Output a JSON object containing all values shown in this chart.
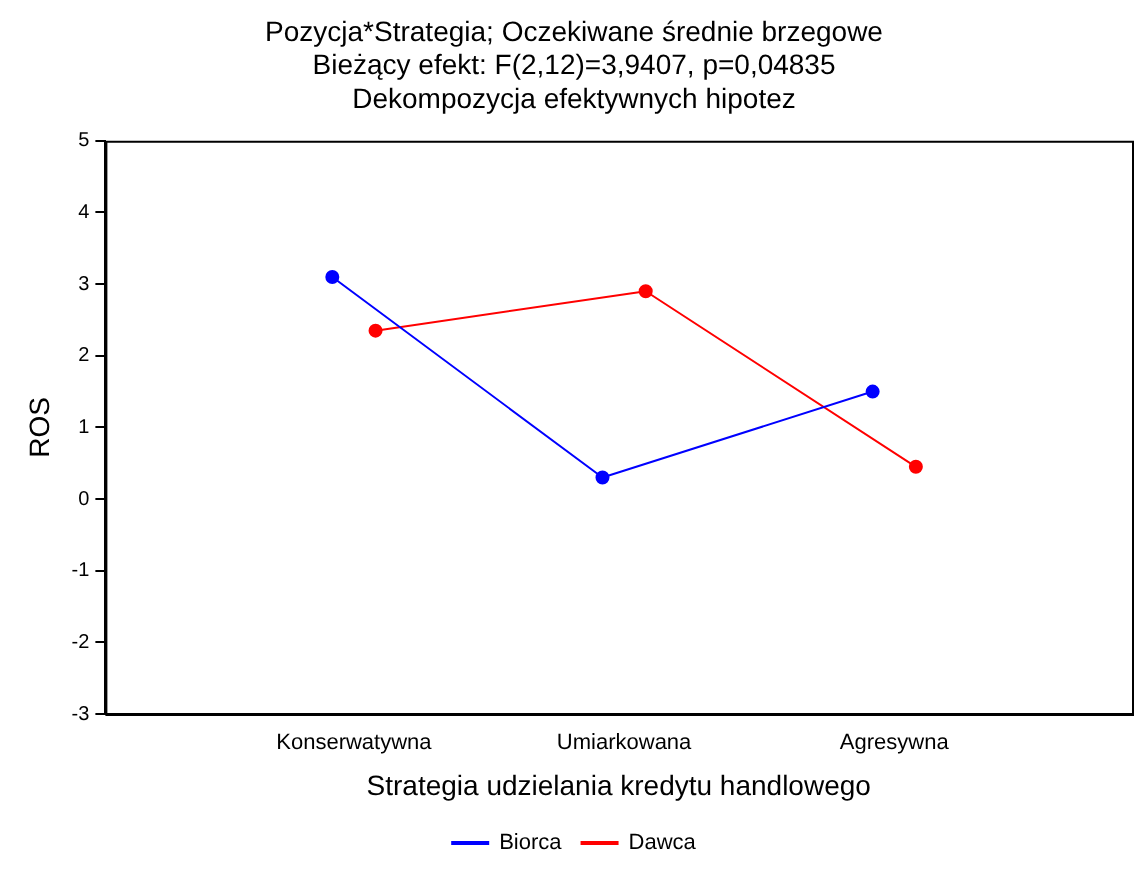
{
  "chart_data": {
    "type": "line",
    "title": "Pozycja*Strategia; Oczekiwane średnie brzegowe",
    "subtitle": "Bieżący efekt: F(2,12)=3,9407, p=0,04835\nDekompozycja efektywnych hipotez",
    "xlabel": "Strategia udzielania kredytu handlowego",
    "ylabel": "ROS",
    "categories": [
      "Konserwatywna",
      "Umiarkowana",
      "Agresywna"
    ],
    "series": [
      {
        "name": "Biorca",
        "color": "#0000ff",
        "values": [
          3.1,
          0.3,
          1.5
        ]
      },
      {
        "name": "Dawca",
        "color": "#ff0000",
        "values": [
          2.35,
          2.9,
          0.45
        ]
      }
    ],
    "ylim": [
      -3,
      5
    ],
    "yticks": [
      -3,
      -2,
      -1,
      0,
      1,
      2,
      3,
      4,
      5
    ],
    "grid": false,
    "legend": "bottom",
    "marker": "circle",
    "line_style": "solid"
  }
}
